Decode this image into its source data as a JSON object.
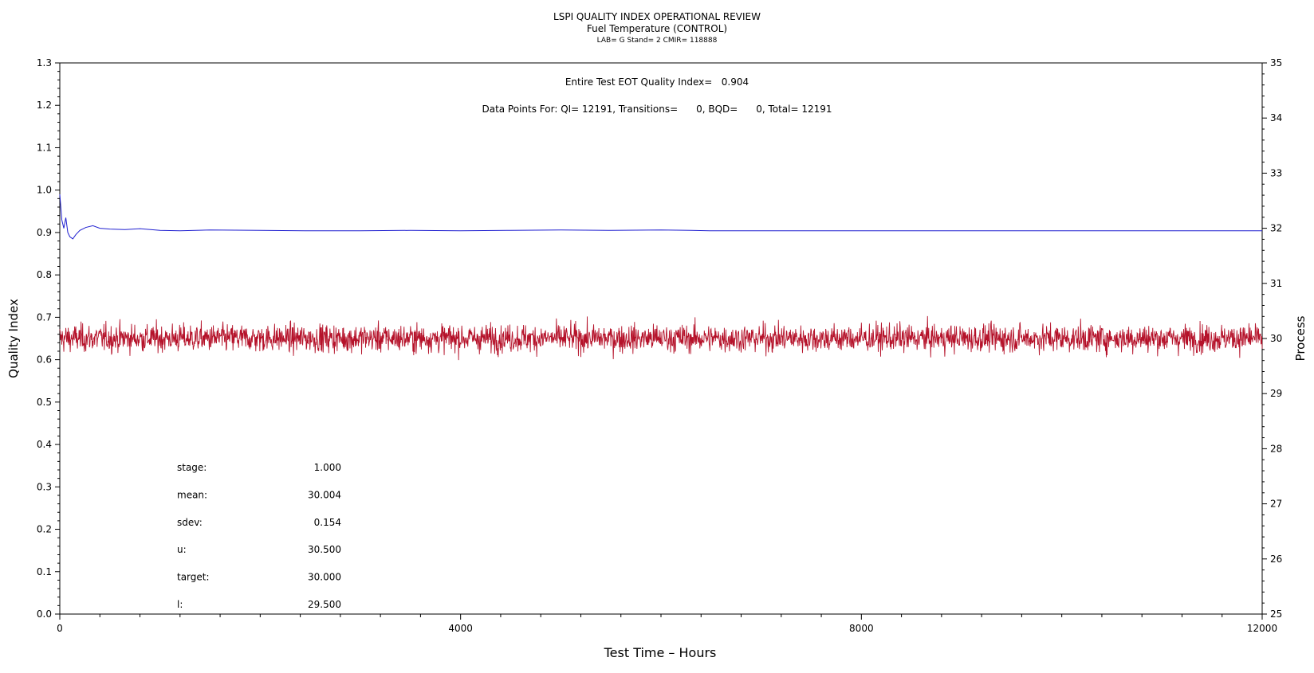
{
  "chart_data": {
    "type": "line",
    "title": "LSPI QUALITY INDEX OPERATIONAL REVIEW",
    "subtitle": "Fuel Temperature (CONTROL)",
    "subtitle2": "LAB= G Stand= 2 CMIR= 118888",
    "xlabel": "Test Time – Hours",
    "ylabel": "Quality Index",
    "y2label": "Process",
    "xlim": [
      0,
      12000
    ],
    "ylim": [
      0,
      1.3
    ],
    "y2lim": [
      25,
      35
    ],
    "x_ticks": [
      0,
      4000,
      8000,
      12000
    ],
    "x_minor_step": 400,
    "y_ticks": [
      "0.0",
      "0.1",
      "0.2",
      "0.3",
      "0.4",
      "0.5",
      "0.6",
      "0.7",
      "0.8",
      "0.9",
      "1.0",
      "1.1",
      "1.2",
      "1.3"
    ],
    "y2_ticks": [
      "25",
      "26",
      "27",
      "28",
      "29",
      "30",
      "31",
      "32",
      "33",
      "34",
      "35"
    ],
    "annotations": [
      "Entire Test EOT Quality Index=   0.904",
      "Data Points For: QI= 12191, Transitions=      0, BQD=      0, Total= 12191"
    ],
    "stats": [
      {
        "label": "stage:",
        "value": "1.000"
      },
      {
        "label": "mean:",
        "value": "30.004"
      },
      {
        "label": "sdev:",
        "value": "0.154"
      },
      {
        "label": "u:",
        "value": "30.500"
      },
      {
        "label": "target:",
        "value": "30.000"
      },
      {
        "label": "l:",
        "value": "29.500"
      }
    ],
    "series": [
      {
        "axis": "left",
        "color": "#1f1fd0",
        "x": [
          0,
          20,
          40,
          60,
          80,
          100,
          130,
          160,
          200,
          260,
          330,
          400,
          500,
          650,
          800,
          1000,
          1200,
          1500,
          2000,
          2500,
          3000,
          3500,
          4000,
          4500,
          5000,
          5500,
          6000,
          6300,
          6500,
          8000,
          10000,
          12000
        ],
        "values": [
          0.99,
          0.93,
          0.91,
          0.935,
          0.9,
          0.89,
          0.885,
          0.895,
          0.905,
          0.912,
          0.916,
          0.91,
          0.908,
          0.907,
          0.909,
          0.905,
          0.904,
          0.906,
          0.905,
          0.904,
          0.904,
          0.905,
          0.904,
          0.905,
          0.906,
          0.905,
          0.906,
          0.905,
          0.904,
          0.904,
          0.904,
          0.904
        ]
      },
      {
        "axis": "right",
        "color": "#b5122a",
        "x_range": [
          0,
          12000
        ],
        "mean": 30.004,
        "sdev": 0.154,
        "min": 29.5,
        "max": 30.7,
        "n": 12191
      }
    ]
  }
}
